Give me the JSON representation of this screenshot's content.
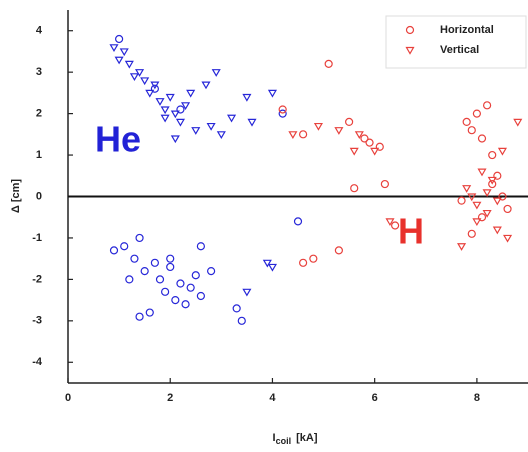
{
  "chart_data": {
    "type": "scatter",
    "x_label": {
      "main": "I",
      "sub": "coil",
      "unit": "[kA]"
    },
    "y_label": "Δ [cm]",
    "xlim": [
      0,
      9
    ],
    "ylim": [
      -4.5,
      4.5
    ],
    "xticks": [
      0,
      2,
      4,
      6,
      8
    ],
    "yticks": [
      -4,
      -3,
      -2,
      -1,
      0,
      1,
      2,
      3,
      4
    ],
    "hline": 0,
    "legend": "upper right",
    "annotations": [
      {
        "text": "He",
        "color": "#2222d6"
      },
      {
        "text": "H",
        "color": "#e8312c"
      }
    ],
    "series": [
      {
        "name": "Horizontal",
        "marker": "circle",
        "color": "#e8413c",
        "groups": [
          {
            "color": "#2727d8",
            "x": [
              0.9,
              1.1,
              1.3,
              1.4,
              1.5,
              1.7,
              1.8,
              1.9,
              2.0,
              2.1,
              2.2,
              2.3,
              2.5,
              2.6,
              2.8,
              1.2,
              1.6,
              2.0,
              2.4,
              3.3,
              3.4,
              4.5,
              2.6,
              1.4,
              1.0,
              1.7,
              2.2,
              4.2
            ],
            "y": [
              -1.3,
              -1.2,
              -1.5,
              -1.0,
              -1.8,
              -1.6,
              -2.0,
              -2.3,
              -1.5,
              -2.5,
              -2.1,
              -2.6,
              -1.9,
              -2.4,
              -1.8,
              -2.0,
              -2.8,
              -1.7,
              -2.2,
              -2.7,
              -3.0,
              -0.6,
              -1.2,
              -2.9,
              3.8,
              2.6,
              2.1,
              2.0
            ]
          },
          {
            "color": "#e8413c",
            "x": [
              4.2,
              4.6,
              5.1,
              5.5,
              5.6,
              5.8,
              5.9,
              6.1,
              6.2,
              7.8,
              7.9,
              8.0,
              8.1,
              8.2,
              8.3,
              8.4,
              8.5,
              7.7,
              7.9,
              8.1,
              8.3,
              8.6,
              4.6,
              4.8,
              5.3,
              6.4
            ],
            "y": [
              2.1,
              1.5,
              3.2,
              1.8,
              0.2,
              1.4,
              1.3,
              1.2,
              0.3,
              1.8,
              1.6,
              2.0,
              1.4,
              2.2,
              1.0,
              0.5,
              0.0,
              -0.1,
              -0.9,
              -0.5,
              0.3,
              -0.3,
              -1.6,
              -1.5,
              -1.3,
              -0.7
            ]
          }
        ]
      },
      {
        "name": "Vertical",
        "marker": "triangle",
        "color": "#e8413c",
        "groups": [
          {
            "color": "#2727d8",
            "x": [
              0.9,
              1.0,
              1.2,
              1.3,
              1.5,
              1.6,
              1.8,
              1.9,
              2.0,
              2.1,
              2.2,
              2.3,
              2.5,
              2.7,
              2.9,
              3.2,
              3.5,
              3.6,
              4.0,
              1.1,
              1.4,
              2.4,
              2.8,
              3.0,
              1.7,
              2.1,
              1.9,
              3.9,
              4.0,
              3.5
            ],
            "y": [
              3.6,
              3.3,
              3.2,
              2.9,
              2.8,
              2.5,
              2.3,
              2.1,
              2.4,
              2.0,
              1.8,
              2.2,
              1.6,
              2.7,
              3.0,
              1.9,
              2.4,
              1.8,
              2.5,
              3.5,
              3.0,
              2.5,
              1.7,
              1.5,
              2.7,
              1.4,
              1.9,
              -1.6,
              -1.7,
              -2.3
            ]
          },
          {
            "color": "#e8413c",
            "x": [
              4.4,
              4.9,
              5.3,
              5.6,
              5.7,
              6.0,
              7.8,
              7.9,
              8.0,
              8.1,
              8.2,
              8.3,
              8.4,
              8.5,
              8.6,
              8.8,
              7.7,
              8.0,
              8.2,
              8.4,
              6.3
            ],
            "y": [
              1.5,
              1.7,
              1.6,
              1.1,
              1.5,
              1.1,
              0.2,
              0.0,
              -0.2,
              0.6,
              -0.4,
              0.4,
              -0.8,
              1.1,
              -1.0,
              1.8,
              -1.2,
              -0.6,
              0.1,
              -0.1,
              -0.6
            ]
          }
        ]
      }
    ]
  }
}
